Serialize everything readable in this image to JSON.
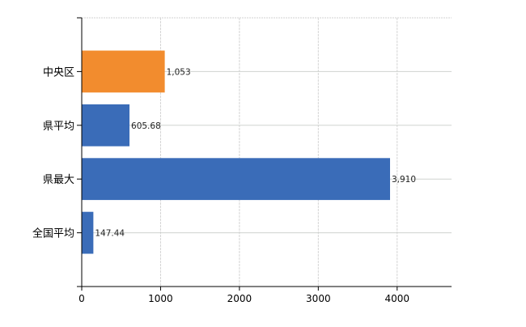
{
  "chart_data": {
    "type": "bar",
    "orientation": "horizontal",
    "categories": [
      "中央区",
      "県平均",
      "県最大",
      "全国平均"
    ],
    "values": [
      1053,
      605.68,
      3910,
      147.44
    ],
    "data_labels": [
      "1,053",
      "605.68",
      "3,910",
      "147.44"
    ],
    "bar_colors": [
      "#f28c2e",
      "#3a6cb8",
      "#3a6cb8",
      "#3a6cb8"
    ],
    "title": "",
    "xlabel": "",
    "ylabel": "",
    "xlim": [
      0,
      4690
    ],
    "xticks": [
      0,
      1000,
      2000,
      3000,
      4000
    ],
    "xtick_labels": [
      "0",
      "1000",
      "2000",
      "3000",
      "4000"
    ],
    "grid": true
  }
}
